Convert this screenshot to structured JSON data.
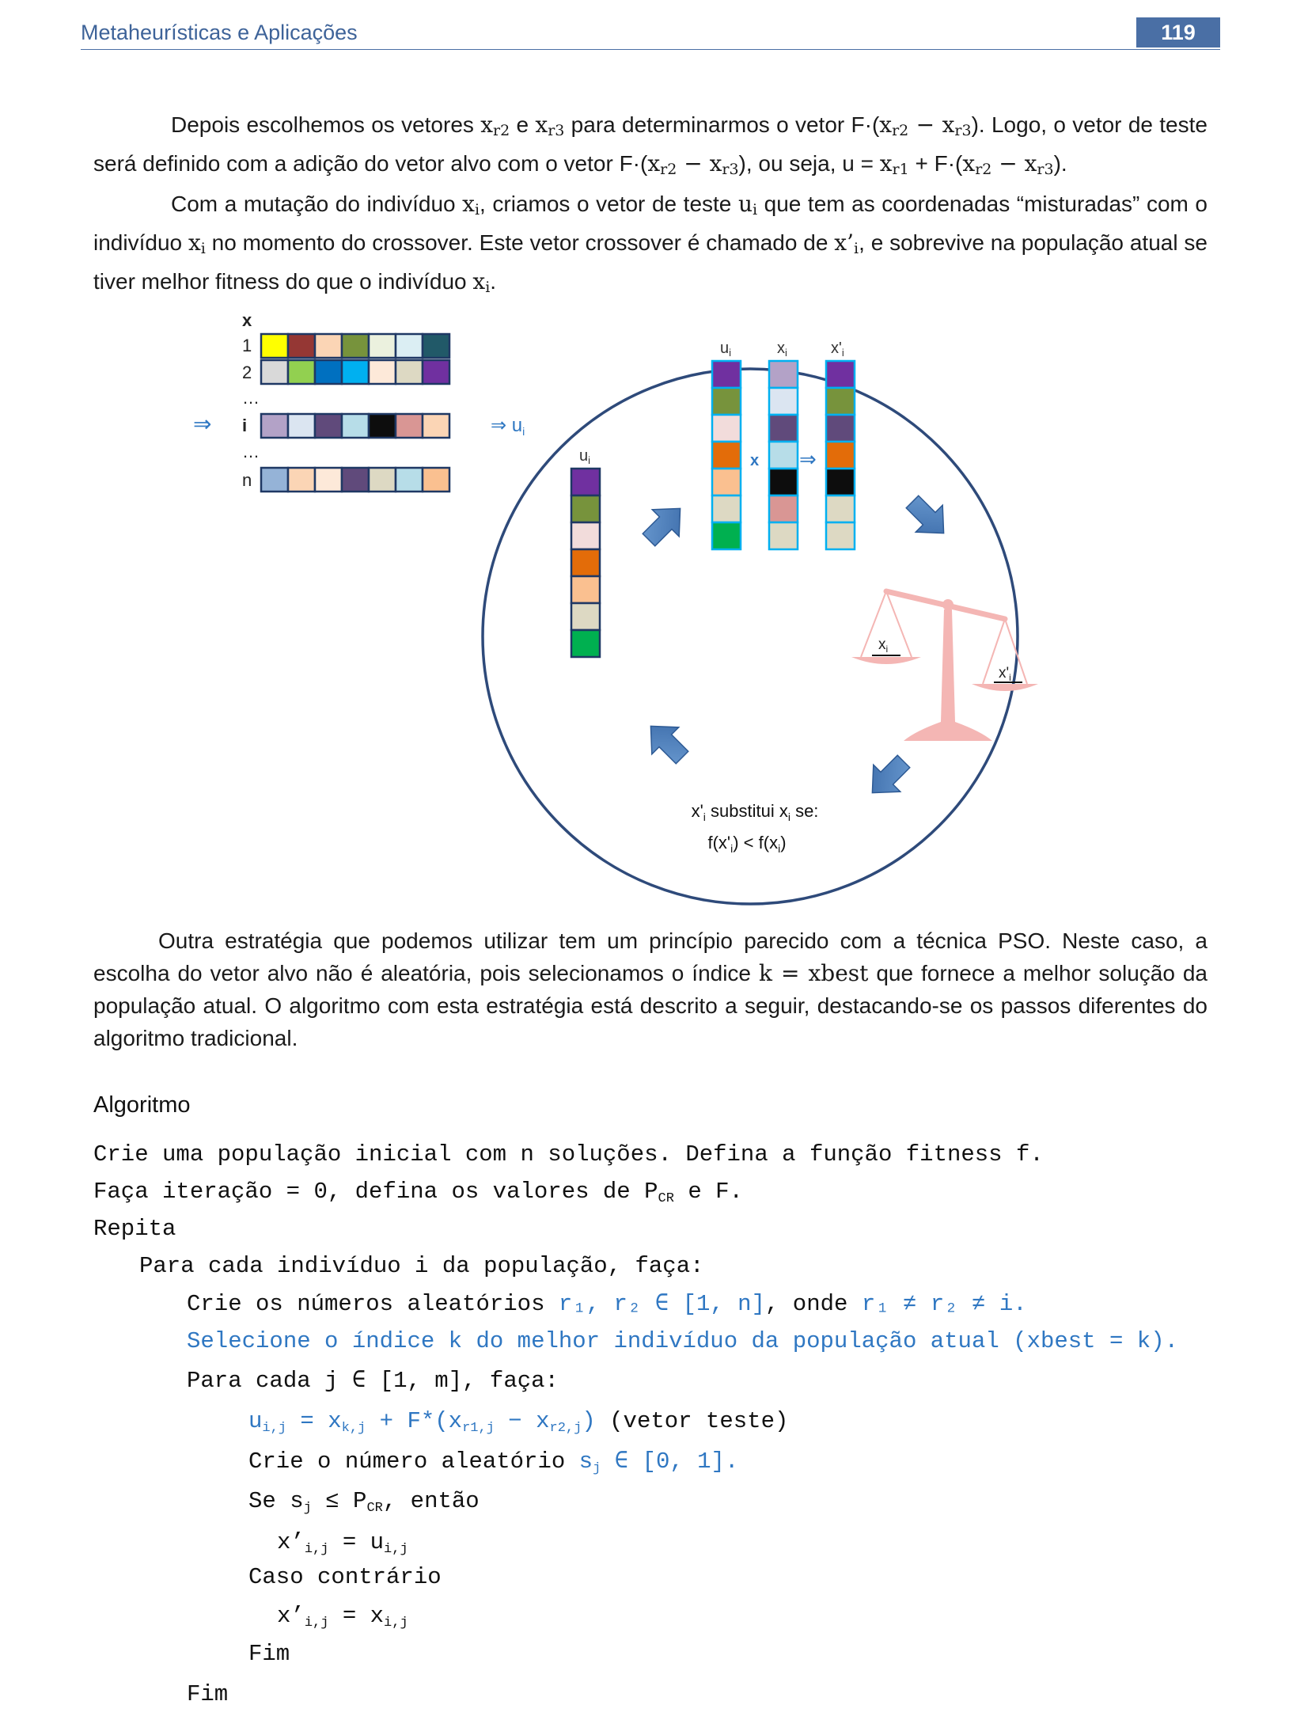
{
  "header": {
    "title": "Metaheurísticas e Aplicações",
    "page_number": "119"
  },
  "paragraphs": {
    "p1": {
      "t1": "Depois escolhemos os vetores ",
      "v1": "x",
      "v1s": "r2",
      "t2": " e ",
      "v2": "x",
      "v2s": "r3",
      "t3": " para determinarmos o vetor F·(",
      "v3": "x",
      "v3s": "r2",
      "v3m": " − ",
      "v4": "x",
      "v4s": "r3",
      "t4": "). Logo, o vetor de teste será definido com a adição do vetor alvo com o vetor F·(",
      "v5": "x",
      "v5s": "r2",
      "v5m": " − ",
      "v6": "x",
      "v6s": "r3",
      "t5": "), ou seja, u = ",
      "v7": "x",
      "v7s": "r1",
      "t6": " + F·(",
      "v8": "x",
      "v8s": "r2",
      "v8m": " − ",
      "v9": "x",
      "v9s": "r3",
      "t7": ")."
    },
    "p2": {
      "t1": "Com a mutação do indivíduo ",
      "v1": "x",
      "v1s": "i",
      "t2": ", criamos o vetor de teste ",
      "v2": "u",
      "v2s": "i",
      "t3": " que tem as coordenadas “misturadas” com o indivíduo ",
      "v3": "x",
      "v3s": "i",
      "t4": " no momento do crossover. Este vetor crossover é chamado de ",
      "v4": "x’",
      "v4s": "i",
      "t5": ", e sobrevive na população atual se tiver melhor fitness do que o indivíduo ",
      "v5": "x",
      "v5s": "i",
      "t6": "."
    },
    "p3": {
      "t1": "Outra estratégia que podemos utilizar tem um princípio parecido com a técnica PSO. Neste caso, a escolha do vetor alvo não é aleatória, pois selecionamos o índice ",
      "v1": "k = xbest",
      "t2": " que fornece a melhor solução da população atual. O algoritmo com esta estratégia está descrito a seguir, destacando-se os passos diferentes do algoritmo tradicional."
    }
  },
  "figure": {
    "labels": {
      "x_header": "x",
      "row1": "1",
      "row2": "2",
      "dots1": "…",
      "row_i": "i",
      "dots2": "…",
      "row_n": "n",
      "arrow_left": "⇒",
      "arrow_ui": "⇒ u",
      "arrow_ui_sub": "i",
      "col_u": "u",
      "col_x": "x",
      "col_xp": "x'",
      "col_sub": "i",
      "ui_left": "u",
      "ui_left_sub": "i",
      "cross_op": "x",
      "cross_arrow": "⇒",
      "scale_left": "x",
      "scale_left_sub": "i",
      "scale_right": "x'",
      "scale_right_sub": "i",
      "caption_line1_a": "x'",
      "caption_line1_b": " substitui x",
      "caption_line1_c": " se:",
      "caption_line2_a": "f(x'",
      "caption_line2_b": ") < f(x",
      "caption_line2_c": ")",
      "caption_sub": "i"
    },
    "population": {
      "row1": [
        "#ffff00",
        "#953734",
        "#fbd5b5",
        "#77933c",
        "#ebf1de",
        "#dbeef3",
        "#215968"
      ],
      "row2": [
        "#d9d9d9",
        "#92d050",
        "#0070c0",
        "#00b0f0",
        "#fde9d9",
        "#ddd9c3",
        "#7030a0"
      ],
      "row_i": [
        "#b3a2c7",
        "#dbe5f1",
        "#604a7b",
        "#b7dde8",
        "#0d0d0d",
        "#d99694",
        "#fbd5b5"
      ],
      "row_n": [
        "#95b3d7",
        "#fbd5b5",
        "#fde9d9",
        "#604a7b",
        "#ddd9c3",
        "#b7dde8",
        "#fac090"
      ]
    },
    "vector_ui_left": [
      "#7030a0",
      "#77933c",
      "#f2dcdb",
      "#e36c09",
      "#fac090",
      "#ddd9c3",
      "#00b050"
    ],
    "vector_ui": [
      "#7030a0",
      "#77933c",
      "#f2dcdb",
      "#e36c09",
      "#fac090",
      "#ddd9c3",
      "#00b050"
    ],
    "vector_xi": [
      "#b3a2c7",
      "#dbe5f1",
      "#604a7b",
      "#b7dde8",
      "#0d0d0d",
      "#d99694",
      "#ddd9c3"
    ],
    "vector_xpi": [
      "#7030a0",
      "#77933c",
      "#604a7b",
      "#e36c09",
      "#0d0d0d",
      "#ddd9c3",
      "#ddd9c3"
    ],
    "colors": {
      "accent": "#2f77c2",
      "arrow_fill": "#4f81bd",
      "circle": "#2e4a7a",
      "scale": "#f4b6b4"
    }
  },
  "algorithm": {
    "title": "Algoritmo",
    "l1": "Crie uma população inicial com n soluções. Defina a função fitness f.",
    "l2a": "Faça iteração = 0, defina os valores de P",
    "l2s": "CR",
    "l2b": " e F.",
    "l3": "Repita",
    "l4": "Para cada indivíduo i da população, faça:",
    "l5a": "Crie os números aleatórios ",
    "l5b": "r₁, r₂ ∈ [1, n]",
    "l5c": ", onde ",
    "l5d": "r₁",
    "l5e": " ≠ r₂ ≠ i.",
    "l6": "Selecione o índice k do melhor indivíduo da população atual (xbest = k).",
    "l7": "Para cada j ∈ [1, m], faça:",
    "l8a": "u",
    "l8as": "i,j",
    "l8b": " = x",
    "l8bs": "k,j",
    "l8c": " + F*(x",
    "l8cs": "r1,j",
    "l8d": " − x",
    "l8ds": "r2,j",
    "l8e": ")",
    "l8f": " (vetor teste)",
    "l9a": "Crie o número aleatório ",
    "l9b": "s",
    "l9bs": "j",
    "l9c": " ∈ [0, 1].",
    "l10a": "Se s",
    "l10as": "j",
    "l10b": " ≤ P",
    "l10bs": "CR",
    "l10c": ", então",
    "l11a": "x’",
    "l11as": "i,j",
    "l11b": " = u",
    "l11bs": "i,j",
    "l12": "Caso contrário",
    "l13a": "x’",
    "l13as": "i,j",
    "l13b": " = x",
    "l13bs": "i,j",
    "l14": "Fim",
    "l15": "Fim"
  }
}
